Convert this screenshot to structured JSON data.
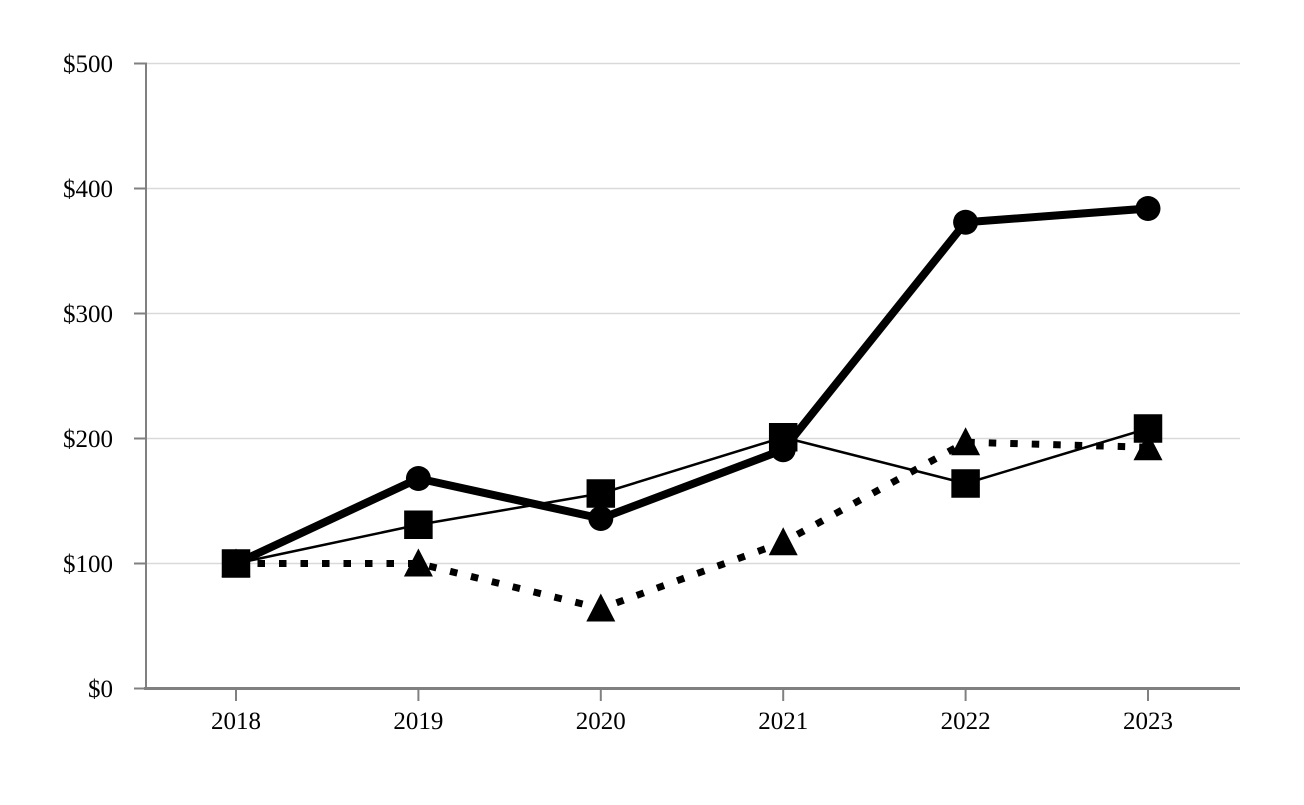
{
  "chart_data": {
    "type": "line",
    "title": "",
    "xlabel": "",
    "ylabel": "",
    "x_categories": [
      "2018",
      "2019",
      "2020",
      "2021",
      "2022",
      "2023"
    ],
    "y_ticks": [
      0,
      100,
      200,
      300,
      400,
      500
    ],
    "y_tick_labels": [
      "$0",
      "$100",
      "$200",
      "$300",
      "$400",
      "$500"
    ],
    "ylim": [
      0,
      500
    ],
    "grid": "horizontal-gridlines-only",
    "legend": "none",
    "series": [
      {
        "name": "thick-solid-line-circle-markers",
        "marker": "circle",
        "line_style": "solid-thick",
        "values": [
          100,
          168,
          136,
          191,
          373,
          384
        ]
      },
      {
        "name": "thin-solid-line-square-markers",
        "marker": "square",
        "line_style": "solid-thin",
        "values": [
          100,
          131,
          156,
          201,
          164,
          208
        ]
      },
      {
        "name": "dotted-thick-line-triangle-markers",
        "marker": "triangle",
        "line_style": "dotted-thick",
        "values": [
          100,
          100,
          64,
          117,
          197,
          193
        ]
      }
    ],
    "colors": {
      "series": "#000000",
      "gridline": "#d9d9d9",
      "axis": "#808080",
      "text": "#000000"
    }
  }
}
